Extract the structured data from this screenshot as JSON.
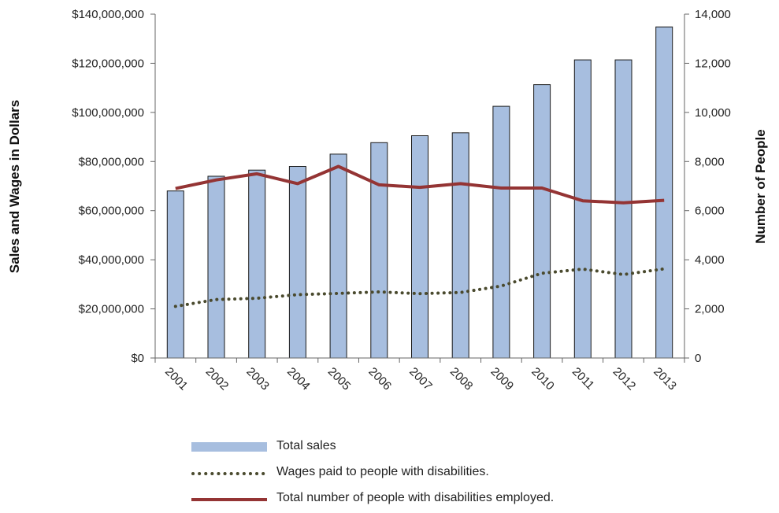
{
  "chart_data": {
    "type": "bar",
    "categories": [
      "2001",
      "2002",
      "2003",
      "2004",
      "2005",
      "2006",
      "2007",
      "2008",
      "2009",
      "2010",
      "2011",
      "2012",
      "2013"
    ],
    "series": [
      {
        "name": "Total sales",
        "type": "bar",
        "axis": "left",
        "color": "#a7bedf",
        "values": [
          68000000,
          74000000,
          76500000,
          78000000,
          83000000,
          87700000,
          90500000,
          91700000,
          102500000,
          111300000,
          121400000,
          121400000,
          134800000
        ]
      },
      {
        "name": "Wages paid to people with disabilities.",
        "type": "line",
        "style": "dotted",
        "axis": "left",
        "color": "#4a4a2e",
        "values": [
          21000000,
          23800000,
          24300000,
          25800000,
          26300000,
          26900000,
          26200000,
          26700000,
          29300000,
          34500000,
          36200000,
          34000000,
          36300000
        ]
      },
      {
        "name": "Total number of people with disabilities employed.",
        "type": "line",
        "style": "solid",
        "axis": "right",
        "color": "#943434",
        "values": [
          6900,
          7250,
          7500,
          7100,
          7800,
          7050,
          6950,
          7100,
          6920,
          6920,
          6400,
          6320,
          6420
        ]
      }
    ],
    "ylabel": "Sales and Wages in Dollars",
    "y2label": "Number of People",
    "ylim": [
      0,
      140000000
    ],
    "y2lim": [
      0,
      14000
    ],
    "yticks": [
      "$0",
      "$20,000,000",
      "$40,000,000",
      "$60,000,000",
      "$80,000,000",
      "$100,000,000",
      "$120,000,000",
      "$140,000,000"
    ],
    "y2ticks": [
      "0",
      "2,000",
      "4,000",
      "6,000",
      "8,000",
      "10,000",
      "12,000",
      "14,000"
    ],
    "grid": false,
    "legend_position": "bottom"
  }
}
